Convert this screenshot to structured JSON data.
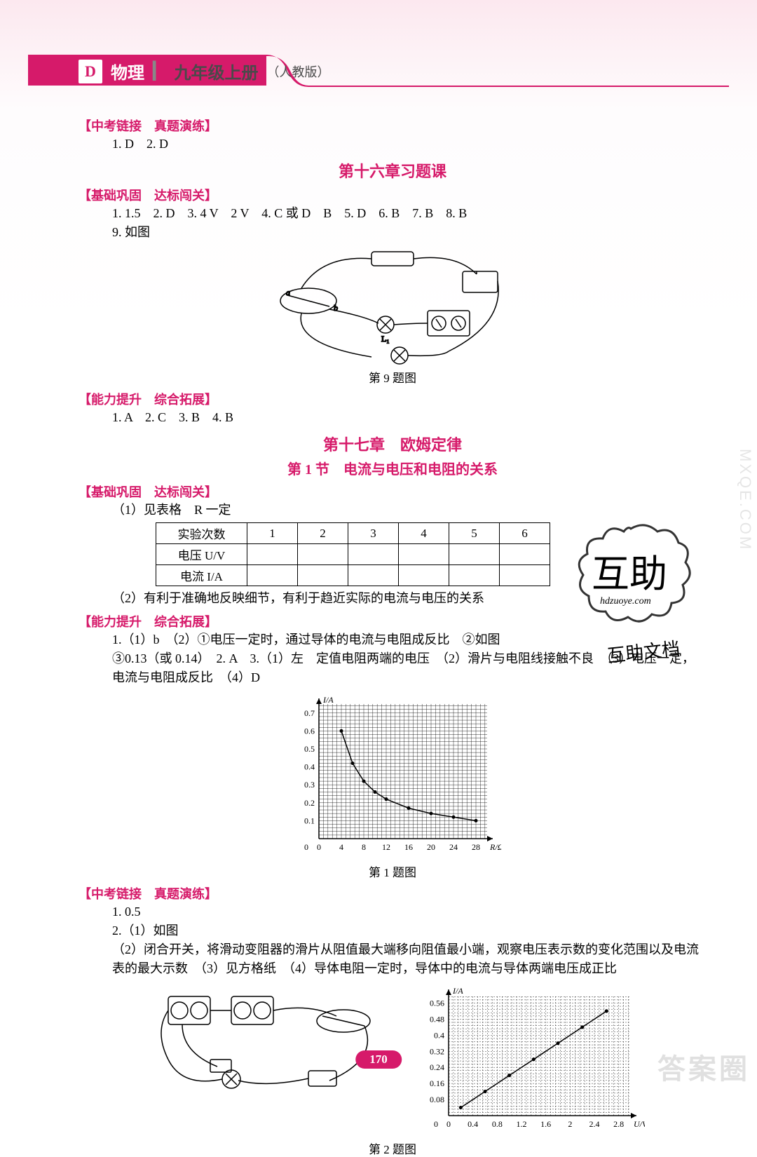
{
  "header": {
    "letter": "D",
    "subject": "物理",
    "grade": "九年级上册",
    "edition": "（人教版）"
  },
  "sections": {
    "exam_link": {
      "title": "【中考链接　真题演练】",
      "answers1": "1. D　2. D"
    },
    "ch16_title": "第十六章习题课",
    "basic1": {
      "title": "【基础巩固　达标闯关】",
      "line1": "1. 1.5　2. D　3. 4 V　2 V　4. C 或 D　B　5. D　6. B　7. B　8. B",
      "line2": "9. 如图"
    },
    "fig9_caption": "第 9 题图",
    "ability1": {
      "title": "【能力提升　综合拓展】",
      "line": "1. A　2. C　3. B　4. B"
    },
    "ch17_title": "第十七章　欧姆定律",
    "ch17_sec1": "第 1 节　电流与电压和电阻的关系",
    "basic2": {
      "title": "【基础巩固　达标闯关】",
      "line1": "（1）见表格　R 一定",
      "line2": "（2）有利于准确地反映细节，有利于趋近实际的电流与电压的关系"
    },
    "table": {
      "row1_label": "实验次数",
      "row1": [
        "1",
        "2",
        "3",
        "4",
        "5",
        "6"
      ],
      "row2_label": "电压 U/V",
      "row3_label": "电流 I/A"
    },
    "ability2": {
      "title": "【能力提升　综合拓展】",
      "line1": "1.（1）b　（2）①电压一定时，通过导体的电流与电阻成反比　②如图",
      "line2": "③0.13（或 0.14）　2. A　3.（1）左　定值电阻两端的电压　（2）滑片与电阻线接触不良　（3）电压一定，电流与电阻成反比　（4）D"
    },
    "fig1_caption": "第 1 题图",
    "exam_link2": {
      "title": "【中考链接　真题演练】",
      "l1": "1. 0.5",
      "l2": "2.（1）如图",
      "l3": "（2）闭合开关，将滑动变阻器的滑片从阻值最大端移向阻值最小端，观察电压表示数的变化范围以及电流表的最大示数　（3）见方格纸　（4）导体电阻一定时，导体中的电流与导体两端电压成正比"
    },
    "fig2_caption": "第 2 题图"
  },
  "chart1": {
    "type": "line",
    "xaxis_label": "R/Ω",
    "yaxis_label": "I/A",
    "x_ticks": [
      0,
      4,
      8,
      12,
      16,
      20,
      24,
      28
    ],
    "y_ticks": [
      0,
      0.1,
      0.2,
      0.3,
      0.4,
      0.5,
      0.6,
      0.7
    ],
    "xlim": [
      0,
      30
    ],
    "ylim": [
      0,
      0.75
    ],
    "points": [
      [
        4,
        0.6
      ],
      [
        6,
        0.42
      ],
      [
        8,
        0.32
      ],
      [
        10,
        0.26
      ],
      [
        12,
        0.22
      ],
      [
        16,
        0.17
      ],
      [
        20,
        0.14
      ],
      [
        24,
        0.12
      ],
      [
        28,
        0.1
      ]
    ],
    "line_color": "#000000",
    "grid_color": "#000000",
    "background_color": "#ffffff",
    "font_size": 12,
    "line_width": 1.5
  },
  "chart2": {
    "type": "line",
    "xaxis_label": "U/V",
    "yaxis_label": "I/A",
    "x_ticks": [
      0,
      0.4,
      0.8,
      1.2,
      1.6,
      2.0,
      2.4,
      2.8
    ],
    "y_ticks": [
      0,
      0.08,
      0.16,
      0.24,
      0.32,
      0.4,
      0.48,
      0.56
    ],
    "xlim": [
      0,
      3.0
    ],
    "ylim": [
      0,
      0.6
    ],
    "points": [
      [
        0.2,
        0.04
      ],
      [
        0.6,
        0.12
      ],
      [
        1.0,
        0.2
      ],
      [
        1.4,
        0.28
      ],
      [
        1.8,
        0.36
      ],
      [
        2.2,
        0.44
      ],
      [
        2.6,
        0.52
      ]
    ],
    "line_color": "#000000",
    "grid_color": "#000000",
    "background_color": "#ffffff",
    "font_size": 12,
    "line_width": 1.5
  },
  "stamp": {
    "text": "互助",
    "url": "hdzuoye.com",
    "sub": "互助文档"
  },
  "page_number": "170",
  "watermarks": {
    "br": "答案圈",
    "side": "MXQE.COM"
  }
}
